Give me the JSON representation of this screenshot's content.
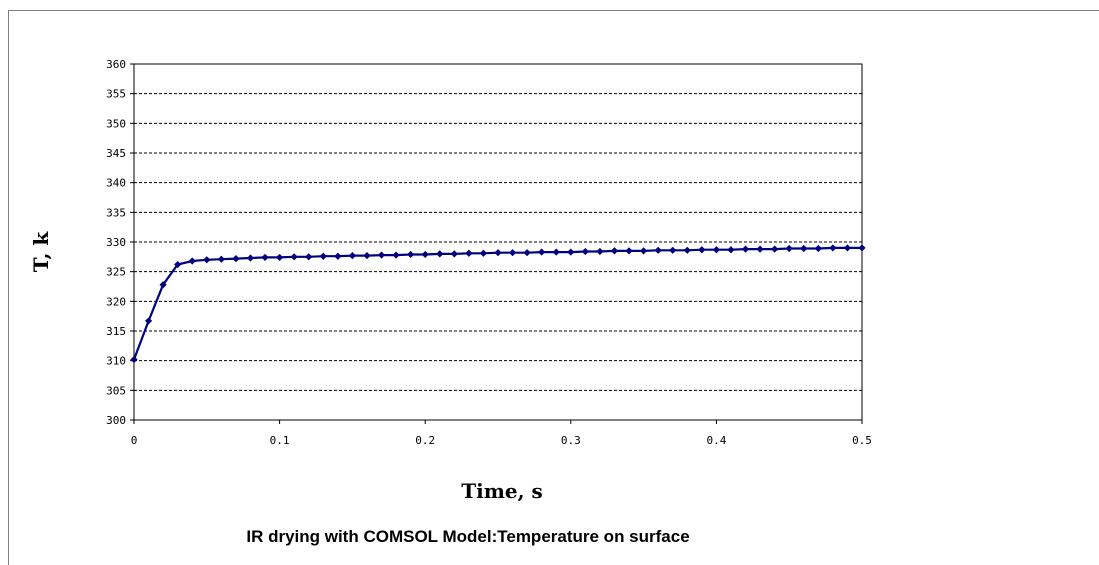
{
  "chart_data": {
    "type": "line",
    "caption": "IR drying with COMSOL Model:Temperature on surface",
    "xlabel": "Time, s",
    "ylabel": "T, k",
    "xlim": [
      0,
      0.5
    ],
    "ylim": [
      300,
      360
    ],
    "x_ticks": [
      "0",
      "0.1",
      "0.2",
      "0.3",
      "0.4",
      "0.5"
    ],
    "y_ticks": [
      "300",
      "305",
      "310",
      "315",
      "320",
      "325",
      "330",
      "335",
      "340",
      "345",
      "350",
      "355",
      "360"
    ],
    "grid": true,
    "line_color": "#000080",
    "series": [
      {
        "x": [
          0,
          0.01,
          0.02,
          0.03,
          0.04,
          0.05,
          0.06,
          0.07,
          0.08,
          0.09,
          0.1,
          0.11,
          0.12,
          0.13,
          0.14,
          0.15,
          0.16,
          0.17,
          0.18,
          0.19,
          0.2,
          0.21,
          0.22,
          0.23,
          0.24,
          0.25,
          0.26,
          0.27,
          0.28,
          0.29,
          0.3,
          0.31,
          0.32,
          0.33,
          0.34,
          0.35,
          0.36,
          0.37,
          0.38,
          0.39,
          0.4,
          0.41,
          0.42,
          0.43,
          0.44,
          0.45,
          0.46,
          0.47,
          0.48,
          0.49,
          0.5
        ],
        "values": [
          310.2,
          316.7,
          322.8,
          326.2,
          326.8,
          327.0,
          327.1,
          327.2,
          327.3,
          327.4,
          327.4,
          327.5,
          327.5,
          327.6,
          327.6,
          327.7,
          327.7,
          327.8,
          327.8,
          327.9,
          327.9,
          328.0,
          328.0,
          328.1,
          328.1,
          328.2,
          328.2,
          328.2,
          328.3,
          328.3,
          328.3,
          328.4,
          328.4,
          328.5,
          328.5,
          328.5,
          328.6,
          328.6,
          328.6,
          328.7,
          328.7,
          328.7,
          328.8,
          328.8,
          328.8,
          328.9,
          328.9,
          328.9,
          329.0,
          329.0,
          329.0
        ]
      }
    ]
  }
}
